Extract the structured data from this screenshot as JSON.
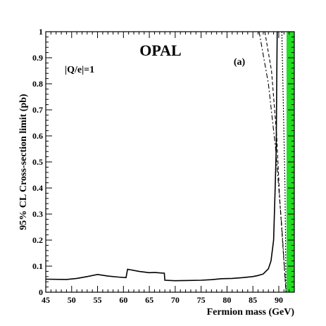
{
  "chart_data": {
    "type": "line",
    "title": "OPAL",
    "panel_label": "(a)",
    "annotation": "|Q/e|=1",
    "xlabel": "Fermion mass (GeV)",
    "ylabel": "95% CL Cross-section limit (pb)",
    "xlim": [
      45,
      93
    ],
    "ylim": [
      0,
      1
    ],
    "xticks": [
      45,
      50,
      55,
      60,
      65,
      70,
      75,
      80,
      85,
      90
    ],
    "yticks": [
      0,
      0.1,
      0.2,
      0.3,
      0.4,
      0.5,
      0.6,
      0.7,
      0.8,
      0.9,
      1
    ],
    "excluded_region": {
      "x_from": 91.5,
      "x_to": 93,
      "color": "#22dd22"
    },
    "series": [
      {
        "style": "solid",
        "x": [
          45,
          49,
          51,
          53,
          55,
          57,
          59,
          60.5,
          60.8,
          63,
          65,
          66,
          67,
          67.9,
          68,
          70,
          72,
          75,
          77,
          79,
          81,
          83,
          85,
          86,
          87,
          88,
          88.5,
          89,
          89.3,
          89.5,
          89.6,
          89.7,
          90
        ],
        "y": [
          0.05,
          0.049,
          0.053,
          0.06,
          0.068,
          0.062,
          0.058,
          0.056,
          0.088,
          0.08,
          0.075,
          0.076,
          0.074,
          0.073,
          0.046,
          0.044,
          0.045,
          0.046,
          0.048,
          0.052,
          0.053,
          0.056,
          0.06,
          0.064,
          0.07,
          0.09,
          0.12,
          0.2,
          0.4,
          0.55,
          0.8,
          1.0,
          1.0
        ]
      },
      {
        "style": "dashed",
        "x": [
          87.3,
          88.6,
          89.6,
          90.2,
          91.4
        ],
        "y": [
          1.0,
          0.85,
          0.6,
          0.35,
          0.0
        ]
      },
      {
        "style": "dash-dot",
        "x": [
          86.2,
          88.0,
          89.4,
          90.6,
          91.4
        ],
        "y": [
          1.0,
          0.8,
          0.55,
          0.25,
          0.0
        ]
      },
      {
        "style": "dotted",
        "x": [
          90.6,
          91.2,
          91.4
        ],
        "y": [
          1.0,
          0.4,
          0.0
        ]
      }
    ]
  }
}
